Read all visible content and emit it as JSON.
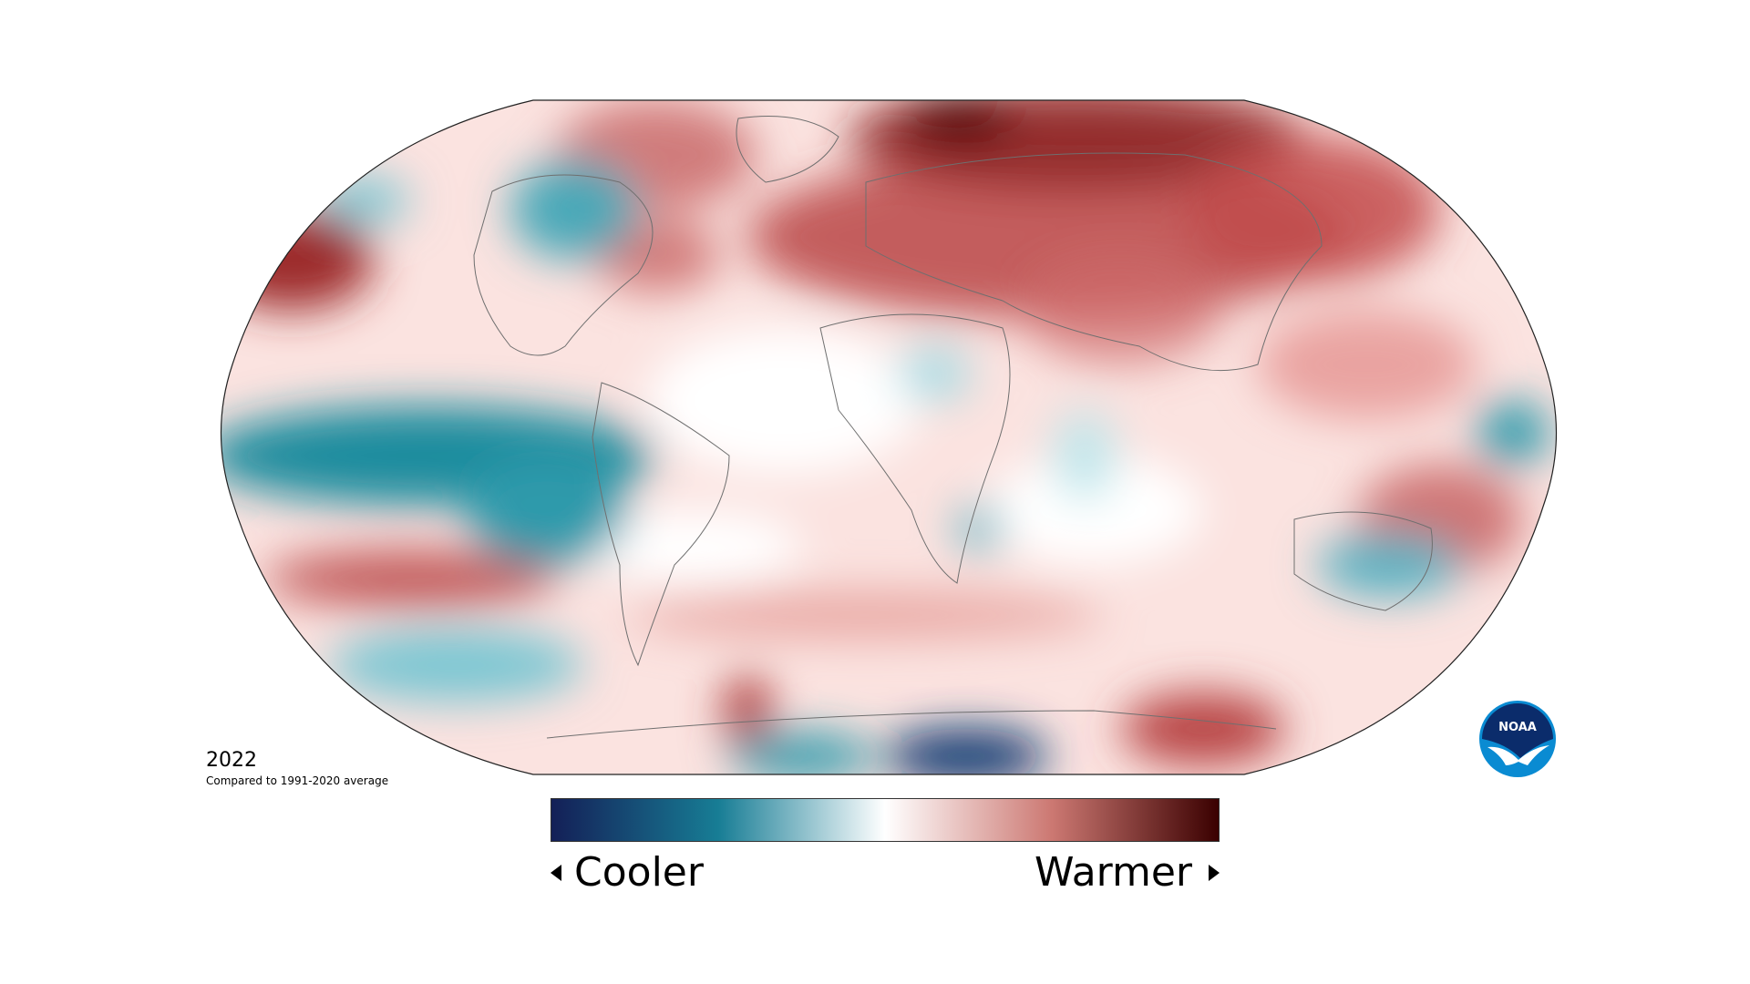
{
  "annotation": {
    "year": "2022",
    "baseline": "Compared to 1991-2020 average"
  },
  "legend": {
    "left_label": "Cooler",
    "right_label": "Warmer",
    "gradient_colors": [
      "#141f57",
      "#177d95",
      "#ffffff",
      "#cc7872",
      "#3a0000"
    ]
  },
  "logo": {
    "text": "NOAA",
    "primary_color": "#0a8bd2",
    "accent_color": "#0b2c6b"
  },
  "colors": {
    "warm_dark": "#8b1d1d",
    "warm": "#c24b4b",
    "warm_light": "#f3b4b0",
    "neutral": "#ffffff",
    "cool_light": "#b8e2e8",
    "cool": "#1e8c9e",
    "cool_dark": "#0e3b72"
  }
}
